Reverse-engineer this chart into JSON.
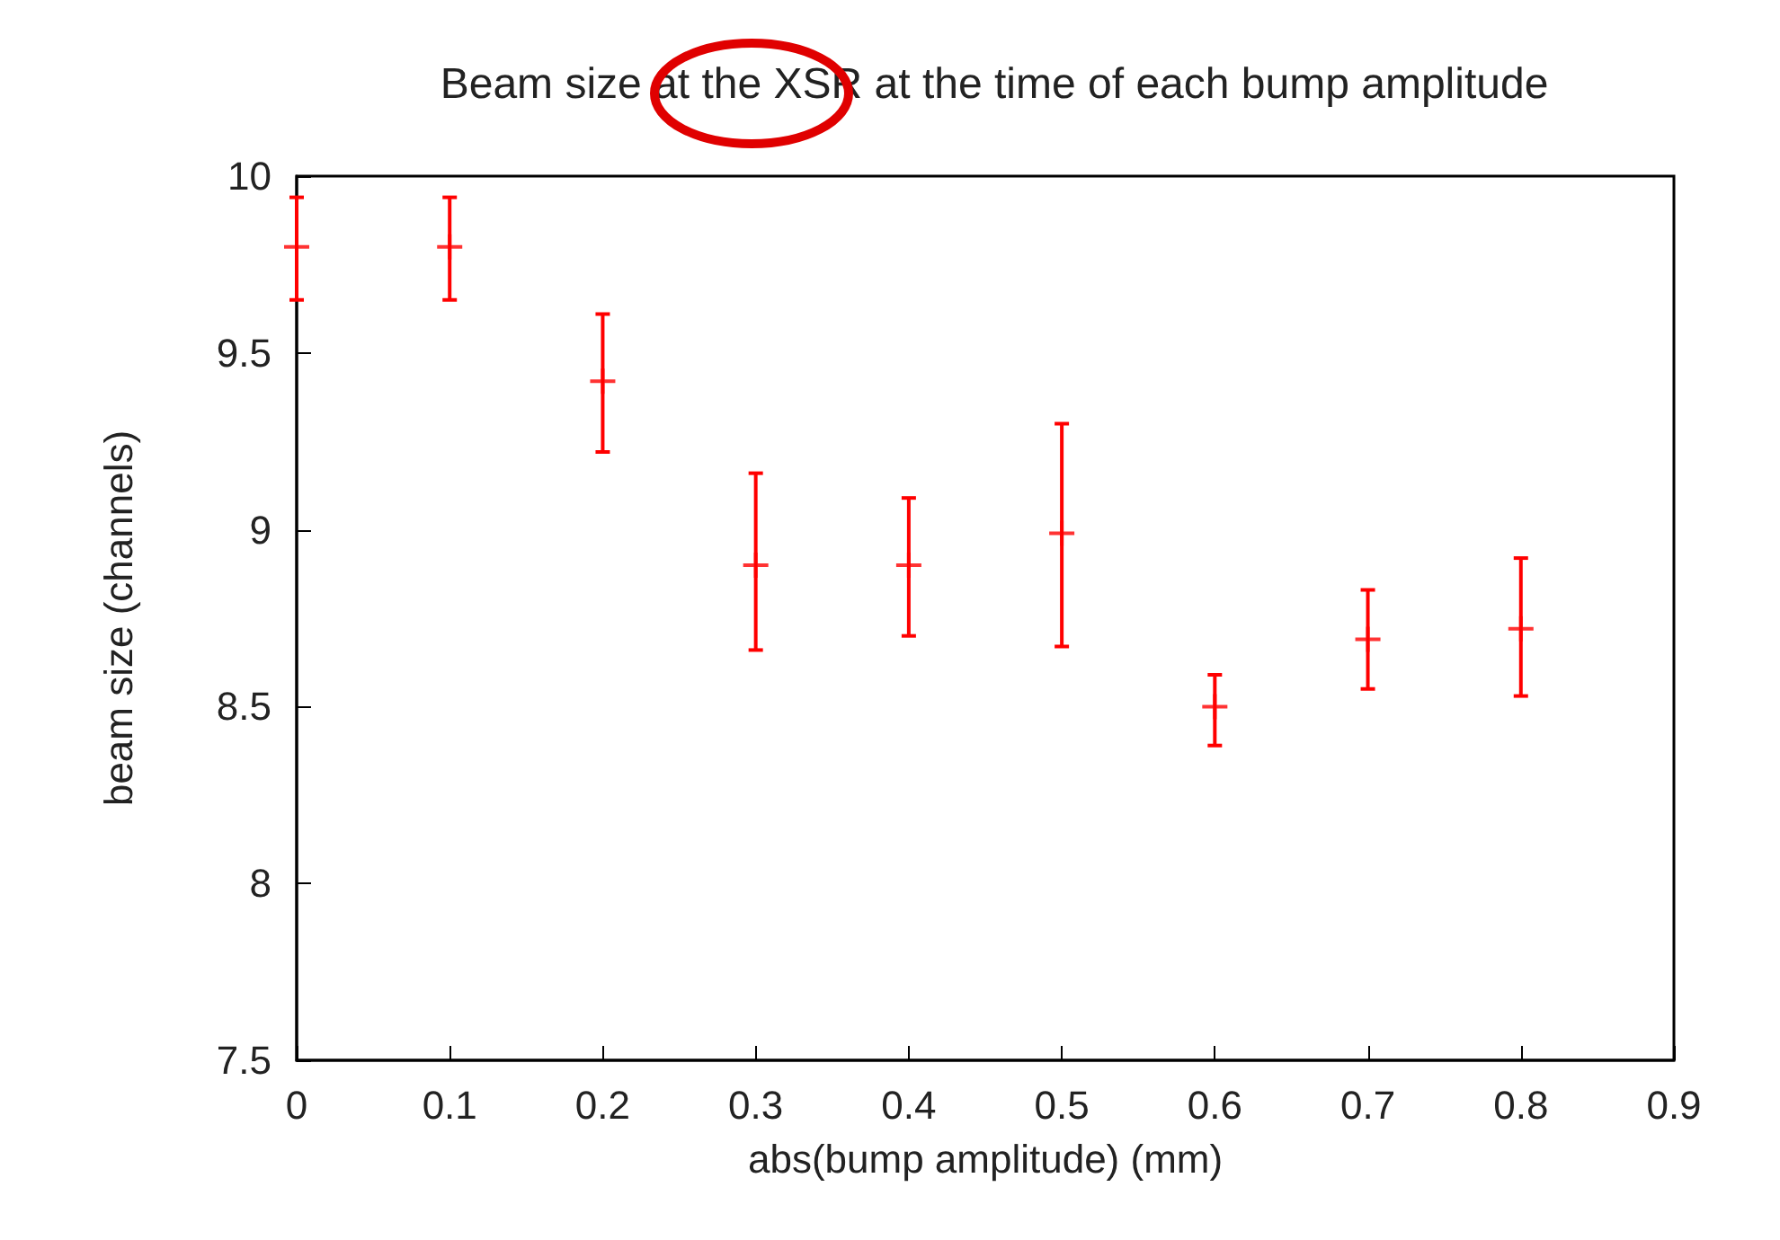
{
  "chart_data": {
    "type": "scatter",
    "title": "Beam size at the XSR at the time of each bump amplitude",
    "xlabel": "abs(bump amplitude) (mm)",
    "ylabel": "beam size (channels)",
    "x": [
      0,
      0.1,
      0.2,
      0.3,
      0.4,
      0.5,
      0.6,
      0.7,
      0.8
    ],
    "series": [
      {
        "color": "#ff0000",
        "values": [
          9.8,
          9.8,
          9.42,
          8.9,
          8.9,
          8.99,
          8.5,
          8.69,
          8.72
        ],
        "errors": [
          [
            9.65,
            9.94
          ],
          [
            9.65,
            9.94
          ],
          [
            9.22,
            9.61
          ],
          [
            8.66,
            9.16
          ],
          [
            8.7,
            9.09
          ],
          [
            8.67,
            9.3
          ],
          [
            8.39,
            8.59
          ],
          [
            8.55,
            8.83
          ],
          [
            8.53,
            8.92
          ]
        ]
      }
    ],
    "xlim": [
      0,
      0.9
    ],
    "xticks": [
      0,
      0.1,
      0.2,
      0.3,
      0.4,
      0.5,
      0.6,
      0.7,
      0.8,
      0.9
    ],
    "ylim": [
      7.5,
      10
    ],
    "yticks": [
      7.5,
      8,
      8.5,
      9,
      9.5,
      10
    ],
    "marker": "cross",
    "grid": false
  }
}
